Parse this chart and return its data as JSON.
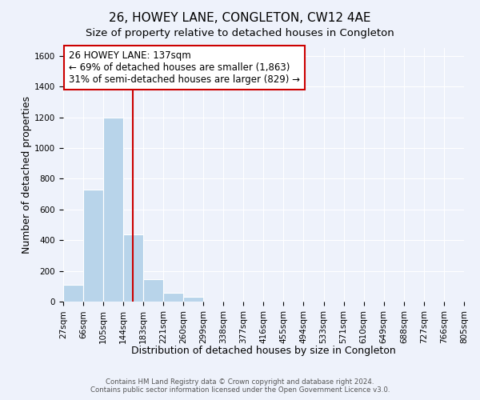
{
  "title": "26, HOWEY LANE, CONGLETON, CW12 4AE",
  "subtitle": "Size of property relative to detached houses in Congleton",
  "xlabel": "Distribution of detached houses by size in Congleton",
  "ylabel": "Number of detached properties",
  "bar_values": [
    110,
    730,
    1200,
    440,
    145,
    60,
    35,
    0,
    0,
    0,
    0,
    0,
    0,
    0,
    0,
    0,
    0,
    0,
    0,
    0
  ],
  "bin_labels": [
    "27sqm",
    "66sqm",
    "105sqm",
    "144sqm",
    "183sqm",
    "221sqm",
    "260sqm",
    "299sqm",
    "338sqm",
    "377sqm",
    "416sqm",
    "455sqm",
    "494sqm",
    "533sqm",
    "571sqm",
    "610sqm",
    "649sqm",
    "688sqm",
    "727sqm",
    "766sqm",
    "805sqm"
  ],
  "bar_color": "#b8d4ea",
  "bar_edge_color": "#ffffff",
  "vline_color": "#cc0000",
  "ylim": [
    0,
    1650
  ],
  "yticks": [
    0,
    200,
    400,
    600,
    800,
    1000,
    1200,
    1400,
    1600
  ],
  "annotation_title": "26 HOWEY LANE: 137sqm",
  "annotation_line1": "← 69% of detached houses are smaller (1,863)",
  "annotation_line2": "31% of semi-detached houses are larger (829) →",
  "annotation_box_color": "#ffffff",
  "annotation_box_edge": "#cc0000",
  "footer_line1": "Contains HM Land Registry data © Crown copyright and database right 2024.",
  "footer_line2": "Contains public sector information licensed under the Open Government Licence v3.0.",
  "background_color": "#eef2fb",
  "grid_color": "#ffffff",
  "title_fontsize": 11,
  "subtitle_fontsize": 9.5,
  "axis_label_fontsize": 9,
  "tick_fontsize": 7.5,
  "annotation_fontsize": 8.5
}
